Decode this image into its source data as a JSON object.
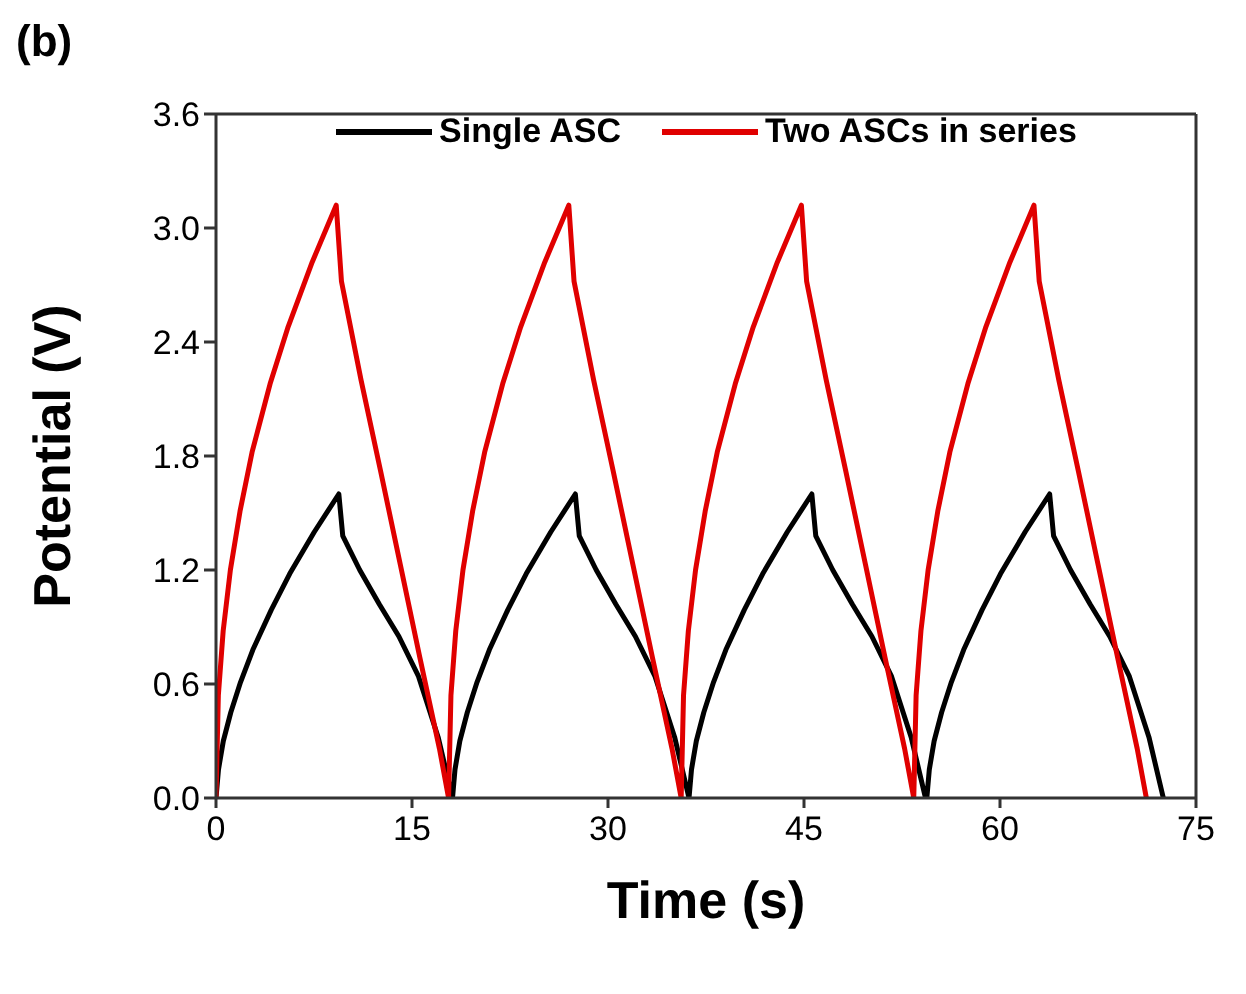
{
  "chart_data": {
    "type": "line",
    "title": "(b)",
    "xlabel": "Time (s)",
    "ylabel": "Potential (V)",
    "xlim": [
      0,
      75
    ],
    "xticks": [
      0,
      15,
      30,
      45,
      60,
      75
    ],
    "ylim": [
      0,
      3.6
    ],
    "yticks": [
      {
        "value": 0,
        "label": "0.0"
      },
      {
        "value": 0.6,
        "label": "0.6"
      },
      {
        "value": 1.2,
        "label": "1.2"
      },
      {
        "value": 1.8,
        "label": "1.8"
      },
      {
        "value": 2.4,
        "label": "2.4"
      },
      {
        "value": 3.0,
        "label": "3.0"
      },
      {
        "value": 3.6,
        "label": "3.6"
      }
    ],
    "legend": "top",
    "marker": "none",
    "line_style": "solid",
    "series": [
      {
        "name": "Single ASC",
        "color": "#000000",
        "x": [
          0,
          0.19,
          0.56,
          1.13,
          1.88,
          2.82,
          4.23,
          5.64,
          7.52,
          9.4,
          9.7,
          11.0,
          12.5,
          14.0,
          15.5,
          17.0,
          18.1,
          18.29,
          18.66,
          19.23,
          19.98,
          20.92,
          22.33,
          23.74,
          25.62,
          27.5,
          27.8,
          29.1,
          30.6,
          32.1,
          33.6,
          35.1,
          36.2,
          36.39,
          36.76,
          37.33,
          38.08,
          39.02,
          40.43,
          41.84,
          43.72,
          45.6,
          45.9,
          47.2,
          48.7,
          50.2,
          51.7,
          53.2,
          54.3,
          54.4,
          54.59,
          54.96,
          55.53,
          56.28,
          57.22,
          58.63,
          60.04,
          61.92,
          63.8,
          64.1,
          65.4,
          66.9,
          68.4,
          69.9,
          71.4,
          72.5
        ],
        "values": [
          0,
          0.15,
          0.3,
          0.45,
          0.61,
          0.78,
          0.99,
          1.18,
          1.4,
          1.6,
          1.38,
          1.2,
          1.02,
          0.85,
          0.64,
          0.32,
          0,
          0.15,
          0.3,
          0.45,
          0.61,
          0.78,
          0.99,
          1.18,
          1.4,
          1.6,
          1.38,
          1.2,
          1.02,
          0.85,
          0.64,
          0.32,
          0,
          0.15,
          0.3,
          0.45,
          0.61,
          0.78,
          0.99,
          1.18,
          1.4,
          1.6,
          1.38,
          1.2,
          1.02,
          0.85,
          0.64,
          0.32,
          0,
          0,
          0.15,
          0.3,
          0.45,
          0.61,
          0.78,
          0.99,
          1.18,
          1.4,
          1.6,
          1.38,
          1.2,
          1.02,
          0.85,
          0.64,
          0.32,
          0
        ]
      },
      {
        "name": "Two ASCs in series",
        "color": "#e00000",
        "x": [
          0,
          0.18,
          0.55,
          1.1,
          1.84,
          2.76,
          4.14,
          5.52,
          7.36,
          9.2,
          9.6,
          11.1,
          12.6,
          14.1,
          15.6,
          17.1,
          17.8,
          17.98,
          18.35,
          18.9,
          19.64,
          20.56,
          21.94,
          23.32,
          25.16,
          27.0,
          27.4,
          28.9,
          30.4,
          31.9,
          33.4,
          34.9,
          35.6,
          35.78,
          36.15,
          36.7,
          37.44,
          38.36,
          39.74,
          41.12,
          42.96,
          44.8,
          45.2,
          46.7,
          48.2,
          49.7,
          51.2,
          52.7,
          53.4,
          53.58,
          53.95,
          54.5,
          55.24,
          56.16,
          57.54,
          58.92,
          60.76,
          62.6,
          63.0,
          64.5,
          66.0,
          67.5,
          69.0,
          70.5,
          71.2
        ],
        "values": [
          0,
          0.54,
          0.88,
          1.2,
          1.51,
          1.82,
          2.18,
          2.48,
          2.82,
          3.12,
          2.72,
          2.2,
          1.72,
          1.23,
          0.74,
          0.26,
          0,
          0.54,
          0.88,
          1.2,
          1.51,
          1.82,
          2.18,
          2.48,
          2.82,
          3.12,
          2.72,
          2.2,
          1.72,
          1.23,
          0.74,
          0.26,
          0,
          0.54,
          0.88,
          1.2,
          1.51,
          1.82,
          2.18,
          2.48,
          2.82,
          3.12,
          2.72,
          2.2,
          1.72,
          1.23,
          0.74,
          0.26,
          0,
          0.54,
          0.88,
          1.2,
          1.51,
          1.82,
          2.18,
          2.48,
          2.82,
          3.12,
          2.72,
          2.2,
          1.72,
          1.23,
          0.74,
          0.26,
          0
        ]
      }
    ]
  }
}
